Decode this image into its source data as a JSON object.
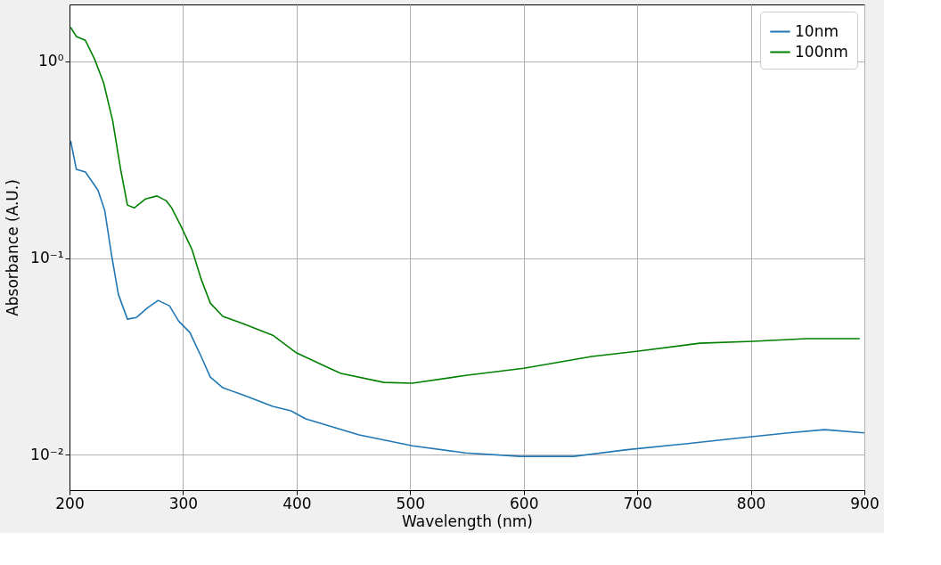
{
  "chart_data": {
    "type": "line",
    "xlabel": "Wavelength (nm)",
    "ylabel": "Absorbance (A.U.)",
    "log": "y",
    "grid": true,
    "legend": "top right",
    "xlim": [
      200,
      900
    ],
    "xticks": [
      200,
      300,
      400,
      500,
      600,
      700,
      800,
      900
    ],
    "ylim": [
      0.0066,
      1.95
    ],
    "yticks": [
      {
        "value": 1,
        "label": "10⁰"
      },
      {
        "value": 0.1,
        "label": "10⁻¹"
      },
      {
        "value": 0.01,
        "label": "10⁻²"
      }
    ],
    "series": [
      {
        "name": "10nm",
        "color": "#1f77b4",
        "x": [
          201,
          206,
          214,
          225,
          231,
          237,
          243,
          251,
          259,
          269,
          278,
          288,
          296,
          306,
          316,
          324,
          335,
          353,
          379,
          395,
          408,
          455,
          502,
          549,
          597,
          644,
          691,
          739,
          786,
          833,
          865,
          900
        ],
        "values": [
          0.395,
          0.283,
          0.274,
          0.222,
          0.175,
          0.104,
          0.0655,
          0.0489,
          0.0499,
          0.056,
          0.0609,
          0.0572,
          0.0479,
          0.0418,
          0.0315,
          0.0248,
          0.0219,
          0.0201,
          0.0176,
          0.0167,
          0.0152,
          0.0126,
          0.0111,
          0.0102,
          0.0098,
          0.0098,
          0.0106,
          0.0113,
          0.0121,
          0.0129,
          0.0134,
          0.0129
        ]
      },
      {
        "name": "100nm",
        "color": "#008000",
        "x": [
          201,
          206,
          214,
          222,
          230,
          238,
          245,
          251,
          257,
          267,
          277,
          285,
          290,
          298,
          308,
          316,
          324,
          335,
          353,
          379,
          400,
          432,
          439,
          477,
          502,
          549,
          600,
          660,
          701,
          755,
          802,
          849,
          896
        ],
        "values": [
          1.49,
          1.34,
          1.28,
          1.03,
          0.78,
          0.5,
          0.283,
          0.186,
          0.18,
          0.2,
          0.207,
          0.196,
          0.18,
          0.146,
          0.11,
          0.078,
          0.059,
          0.0505,
          0.0464,
          0.0405,
          0.0329,
          0.027,
          0.0259,
          0.0233,
          0.0231,
          0.0253,
          0.0275,
          0.0316,
          0.0336,
          0.0369,
          0.0377,
          0.0389,
          0.0389
        ]
      }
    ]
  }
}
